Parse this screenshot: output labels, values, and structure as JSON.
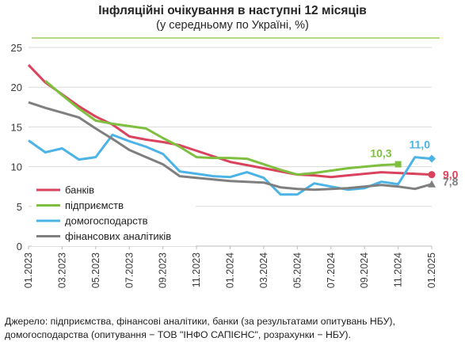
{
  "title": "Інфляційні очікування в наступні 12 місяців",
  "subtitle": "(у середньому по Україні, %)",
  "source": "Джерело: підприємства, фінансові аналітики, банки (за результатами опитувань НБУ), домогосподарства (опитування − ТОВ \"ІНФО САПІЄНС\", розрахунки − НБУ).",
  "chart_data": {
    "type": "line",
    "ylim": [
      0,
      25
    ],
    "yticks": [
      0,
      5,
      10,
      15,
      20,
      25
    ],
    "x": [
      "01.2023",
      "02.2023",
      "03.2023",
      "04.2023",
      "05.2023",
      "06.2023",
      "07.2023",
      "08.2023",
      "09.2023",
      "10.2023",
      "11.2023",
      "12.2023",
      "01.2024",
      "02.2024",
      "03.2024",
      "04.2024",
      "05.2024",
      "06.2024",
      "07.2024",
      "08.2024",
      "09.2024",
      "10.2024",
      "11.2024",
      "12.2024",
      "01.2025"
    ],
    "xticklabels": [
      "01.2023",
      "03.2023",
      "05.2023",
      "07.2023",
      "09.2023",
      "11.2023",
      "01.2024",
      "03.2024",
      "05.2024",
      "07.2024",
      "09.2024",
      "11.2024",
      "01.2025"
    ],
    "grid": true,
    "legend_position": "left-bottom",
    "series": [
      {
        "name": "банків",
        "color": "#d9435e",
        "end_label": "9,0",
        "values": [
          22.8,
          20.6,
          19.1,
          17.6,
          16.3,
          15.3,
          13.8,
          13.4,
          13.1,
          12.7,
          12.0,
          11.3,
          10.6,
          10.2,
          9.8,
          9.4,
          9.0,
          8.9,
          8.7,
          8.9,
          9.1,
          9.3,
          9.2,
          9.1,
          9.0
        ]
      },
      {
        "name": "підприємств",
        "color": "#7fbf3f",
        "end_label": "10,3",
        "values": [
          null,
          20.8,
          19.0,
          17.3,
          15.8,
          15.4,
          15.1,
          14.8,
          13.6,
          12.5,
          11.2,
          11.1,
          11.1,
          11.0,
          10.3,
          9.6,
          9.0,
          9.2,
          9.5,
          9.8,
          10.0,
          10.2,
          10.3,
          null,
          null
        ]
      },
      {
        "name": "домогосподарств",
        "color": "#4bb3e6",
        "end_label": "11,0",
        "values": [
          13.3,
          11.8,
          12.3,
          10.9,
          11.2,
          14.0,
          13.2,
          12.5,
          11.6,
          9.4,
          9.1,
          8.8,
          8.7,
          9.3,
          8.6,
          6.5,
          6.5,
          7.9,
          7.5,
          7.1,
          7.3,
          8.1,
          7.8,
          11.2,
          11.0
        ]
      },
      {
        "name": "фінансових аналітиків",
        "color": "#7f7f7f",
        "end_label": "7,8",
        "values": [
          18.1,
          17.4,
          16.8,
          16.2,
          14.8,
          13.5,
          12.1,
          11.2,
          10.3,
          8.8,
          8.6,
          8.4,
          8.2,
          8.1,
          8.0,
          7.4,
          7.2,
          7.1,
          7.2,
          7.3,
          7.5,
          7.7,
          7.5,
          7.2,
          7.8
        ]
      }
    ]
  }
}
